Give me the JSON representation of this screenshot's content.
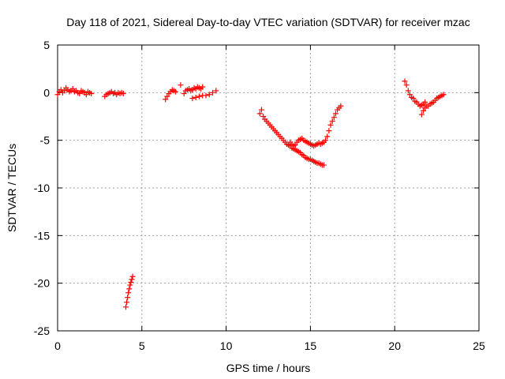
{
  "chart_data": {
    "type": "scatter",
    "title": "Day 118 of 2021, Sidereal Day-to-day VTEC variation (SDTVAR) for receiver mzac",
    "xlabel": "GPS time / hours",
    "ylabel": "SDTVAR / TECUs",
    "xlim": [
      0,
      25
    ],
    "ylim": [
      -25,
      5
    ],
    "xticks": [
      0,
      5,
      10,
      15,
      20,
      25
    ],
    "xtick_labels": [
      "0",
      "5",
      "10",
      "15",
      "20",
      "25"
    ],
    "yticks": [
      5,
      0,
      -5,
      -10,
      -15,
      -20,
      -25
    ],
    "ytick_labels": [
      "5",
      "0",
      "-5",
      "-10",
      "-15",
      "-20",
      "-25"
    ],
    "grid": true,
    "marker": "plus",
    "color": "#ff0000",
    "series": [
      {
        "name": "SDTVAR",
        "x": [
          0.0,
          0.1,
          0.2,
          0.3,
          0.4,
          0.5,
          0.6,
          0.7,
          0.8,
          0.9,
          1.0,
          1.1,
          1.2,
          1.3,
          1.4,
          1.5,
          1.6,
          1.7,
          1.8,
          1.9,
          2.0,
          2.8,
          2.9,
          3.0,
          3.1,
          3.2,
          3.3,
          3.4,
          3.5,
          3.6,
          3.7,
          3.8,
          3.9,
          4.05,
          4.1,
          4.15,
          4.2,
          4.25,
          4.3,
          4.35,
          4.4,
          4.45,
          6.4,
          6.5,
          6.6,
          6.7,
          6.8,
          6.9,
          7.0,
          7.3,
          7.5,
          7.6,
          7.7,
          7.8,
          7.9,
          8.0,
          8.1,
          8.2,
          8.3,
          8.4,
          8.5,
          8.6,
          8.0,
          8.2,
          8.4,
          8.6,
          8.8,
          9.0,
          9.2,
          9.4,
          12.0,
          12.1,
          12.2,
          12.3,
          12.4,
          12.5,
          12.6,
          12.7,
          12.8,
          12.9,
          13.0,
          13.1,
          13.2,
          13.3,
          13.4,
          13.5,
          13.6,
          13.7,
          13.8,
          13.9,
          14.0,
          14.1,
          14.2,
          14.3,
          14.4,
          14.5,
          14.6,
          14.7,
          14.8,
          14.9,
          15.0,
          15.1,
          15.2,
          15.3,
          15.4,
          15.5,
          15.6,
          15.7,
          15.8,
          13.8,
          13.9,
          14.0,
          14.1,
          14.2,
          14.3,
          14.4,
          14.5,
          14.6,
          14.7,
          14.8,
          14.9,
          15.0,
          15.1,
          15.2,
          15.3,
          15.4,
          15.5,
          15.6,
          15.7,
          15.8,
          15.9,
          16.0,
          16.1,
          16.2,
          16.3,
          16.4,
          16.5,
          16.6,
          16.7,
          16.8,
          20.6,
          20.7,
          20.8,
          20.9,
          21.0,
          21.1,
          21.2,
          21.3,
          21.4,
          21.5,
          21.6,
          21.7,
          21.8,
          21.6,
          21.7,
          21.8,
          21.9,
          22.0,
          22.1,
          22.2,
          22.3,
          22.4,
          22.5,
          22.6,
          22.7,
          22.8,
          22.9
        ],
        "y": [
          -0.2,
          0.1,
          0.3,
          0.0,
          0.2,
          0.5,
          0.3,
          0.1,
          0.2,
          0.4,
          0.1,
          0.2,
          0.0,
          -0.1,
          0.2,
          0.1,
          0.0,
          -0.2,
          0.1,
          0.0,
          -0.1,
          -0.4,
          -0.2,
          -0.1,
          0.0,
          0.1,
          -0.1,
          0.0,
          -0.2,
          0.0,
          -0.1,
          0.0,
          -0.1,
          -22.5,
          -22.0,
          -21.5,
          -21.0,
          -20.6,
          -20.2,
          -19.9,
          -19.6,
          -19.3,
          -0.7,
          -0.4,
          -0.1,
          0.1,
          0.3,
          0.2,
          0.1,
          0.8,
          -0.1,
          0.2,
          0.3,
          0.4,
          0.2,
          0.3,
          0.5,
          0.4,
          0.6,
          0.5,
          0.4,
          0.6,
          -0.6,
          -0.5,
          -0.4,
          -0.3,
          -0.3,
          -0.2,
          0.0,
          0.2,
          -2.2,
          -1.8,
          -2.5,
          -2.8,
          -3.0,
          -3.2,
          -3.4,
          -3.6,
          -3.8,
          -4.0,
          -4.2,
          -4.4,
          -4.6,
          -4.8,
          -5.0,
          -5.2,
          -5.4,
          -5.5,
          -5.6,
          -5.8,
          -5.9,
          -6.0,
          -6.1,
          -6.2,
          -6.3,
          -6.5,
          -6.6,
          -6.8,
          -6.9,
          -7.0,
          -7.0,
          -7.1,
          -7.2,
          -7.3,
          -7.4,
          -7.4,
          -7.5,
          -7.6,
          -7.6,
          -5.2,
          -5.4,
          -5.6,
          -5.5,
          -5.2,
          -5.0,
          -4.9,
          -4.8,
          -5.0,
          -5.1,
          -5.2,
          -5.3,
          -5.4,
          -5.5,
          -5.6,
          -5.5,
          -5.4,
          -5.3,
          -5.4,
          -5.3,
          -5.2,
          -5.0,
          -4.6,
          -4.0,
          -3.4,
          -3.0,
          -2.6,
          -2.2,
          -1.8,
          -1.6,
          -1.4,
          1.2,
          0.8,
          0.2,
          -0.2,
          -0.5,
          -0.6,
          -0.9,
          -1.0,
          -1.2,
          -1.4,
          -1.3,
          -1.2,
          -1.0,
          -2.3,
          -1.9,
          -1.6,
          -1.4,
          -1.4,
          -1.2,
          -1.1,
          -1.0,
          -0.8,
          -0.6,
          -0.5,
          -0.4,
          -0.3,
          -0.2
        ]
      }
    ]
  }
}
